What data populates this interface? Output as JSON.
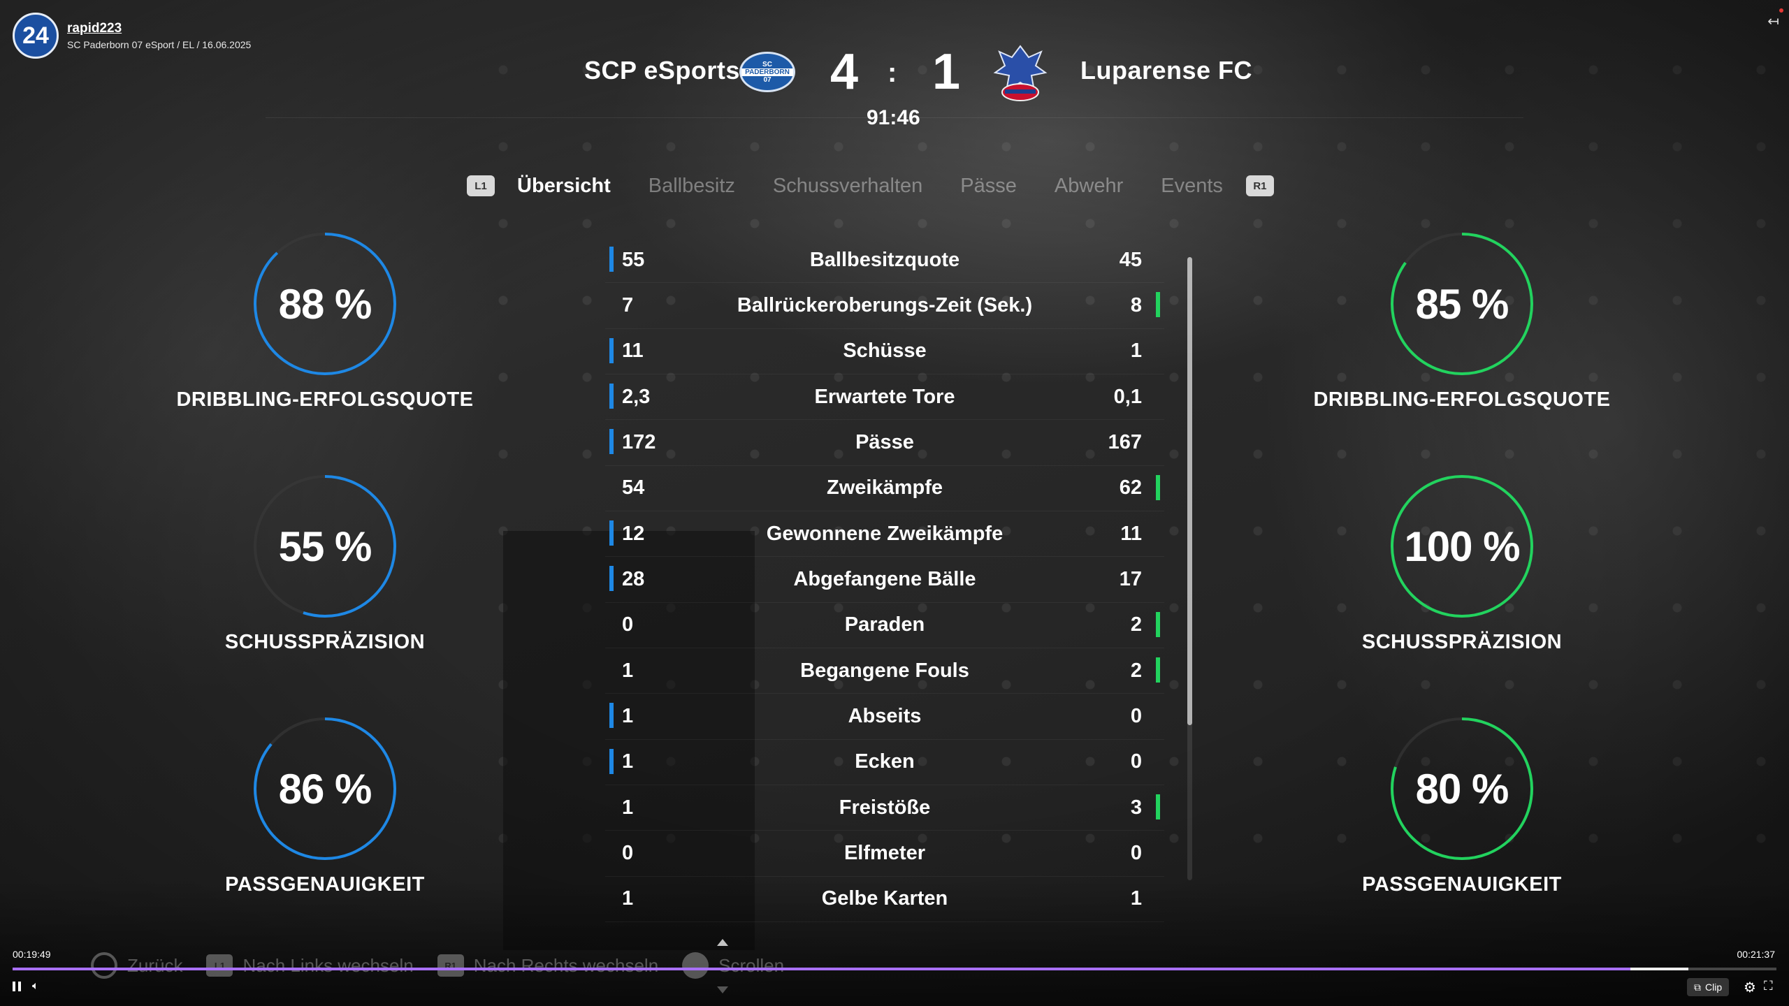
{
  "channel": {
    "logo_text": "24",
    "name": "rapid223",
    "subtitle": "SC Paderborn 07 eSport / EL / 16.06.2025"
  },
  "match": {
    "home_team": "SCP eSports",
    "away_team": "Luparense FC",
    "home_score": "4",
    "separator": ":",
    "away_score": "1",
    "clock": "91:46",
    "home_crest_top": "SC",
    "home_crest_band": "PADERBORN",
    "home_crest_bottom": "07"
  },
  "tabs": {
    "left_button": "L1",
    "right_button": "R1",
    "items": [
      "Übersicht",
      "Ballbesitz",
      "Schussverhalten",
      "Pässe",
      "Abwehr",
      "Events"
    ],
    "active": "Übersicht"
  },
  "stats": [
    {
      "label": "Ballbesitzquote",
      "home": "55",
      "away": "45",
      "leader": "home"
    },
    {
      "label": "Ballrückeroberungs-Zeit (Sek.)",
      "home": "7",
      "away": "8",
      "leader": "away"
    },
    {
      "label": "Schüsse",
      "home": "11",
      "away": "1",
      "leader": "home"
    },
    {
      "label": "Erwartete Tore",
      "home": "2,3",
      "away": "0,1",
      "leader": "home"
    },
    {
      "label": "Pässe",
      "home": "172",
      "away": "167",
      "leader": "home"
    },
    {
      "label": "Zweikämpfe",
      "home": "54",
      "away": "62",
      "leader": "away"
    },
    {
      "label": "Gewonnene Zweikämpfe",
      "home": "12",
      "away": "11",
      "leader": "home"
    },
    {
      "label": "Abgefangene Bälle",
      "home": "28",
      "away": "17",
      "leader": "home"
    },
    {
      "label": "Paraden",
      "home": "0",
      "away": "2",
      "leader": "away"
    },
    {
      "label": "Begangene Fouls",
      "home": "1",
      "away": "2",
      "leader": "away"
    },
    {
      "label": "Abseits",
      "home": "1",
      "away": "0",
      "leader": "home"
    },
    {
      "label": "Ecken",
      "home": "1",
      "away": "0",
      "leader": "home"
    },
    {
      "label": "Freistöße",
      "home": "1",
      "away": "3",
      "leader": "away"
    },
    {
      "label": "Elfmeter",
      "home": "0",
      "away": "0",
      "leader": "none"
    },
    {
      "label": "Gelbe Karten",
      "home": "1",
      "away": "1",
      "leader": "none"
    }
  ],
  "rings": {
    "home": [
      {
        "value": "88 %",
        "pct": 88,
        "label": "DRIBBLING-ERFOLGSQUOTE"
      },
      {
        "value": "55 %",
        "pct": 55,
        "label": "SCHUSSPRÄZISION"
      },
      {
        "value": "86 %",
        "pct": 86,
        "label": "PASSGENAUIGKEIT"
      }
    ],
    "away": [
      {
        "value": "85 %",
        "pct": 85,
        "label": "DRIBBLING-ERFOLGSQUOTE"
      },
      {
        "value": "100 %",
        "pct": 100,
        "label": "SCHUSSPRÄZISION"
      },
      {
        "value": "80 %",
        "pct": 80,
        "label": "PASSGENAUIGKEIT"
      }
    ]
  },
  "colors": {
    "home_accent": "#1e88e5",
    "away_accent": "#22d35e",
    "progress_accent": "#a970ff"
  },
  "hints": {
    "back": "Zurück",
    "left_button": "L1",
    "left": "Nach Links wechseln",
    "right_button": "R1",
    "right": "Nach Rechts wechseln",
    "scroll": "Scrollen"
  },
  "player": {
    "current_time": "00:19:49",
    "total_time": "00:21:37",
    "progress": 0.917,
    "buffered_to": 0.95,
    "clip_label": "Clip"
  }
}
